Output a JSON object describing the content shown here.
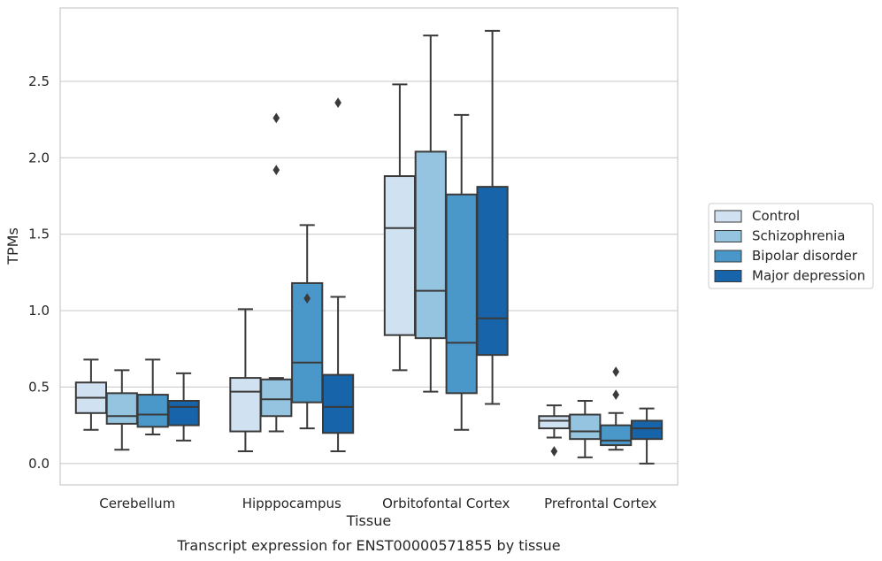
{
  "chart_data": {
    "type": "boxplot",
    "title": "Transcript expression for ENST00000571855 by tissue",
    "xlabel": "Tissue",
    "ylabel": "TPMs",
    "ylim": [
      -0.14,
      2.98
    ],
    "yticks": [
      0.0,
      0.5,
      1.0,
      1.5,
      2.0,
      2.5
    ],
    "ytick_labels": [
      "0.0",
      "0.5",
      "1.0",
      "1.5",
      "2.0",
      "2.5"
    ],
    "grid": "horizontal",
    "legend_position": "right",
    "categories": [
      "Cerebellum",
      "Hipppocampus",
      "Orbitofontal Cortex",
      "Prefrontal Cortex"
    ],
    "series": [
      {
        "name": "Control",
        "color": "#d0e1f2",
        "boxes": [
          {
            "whislo": 0.22,
            "q1": 0.33,
            "med": 0.43,
            "q3": 0.53,
            "whishi": 0.68,
            "fliers": []
          },
          {
            "whislo": 0.08,
            "q1": 0.21,
            "med": 0.47,
            "q3": 0.56,
            "whishi": 1.01,
            "fliers": []
          },
          {
            "whislo": 0.61,
            "q1": 0.84,
            "med": 1.54,
            "q3": 1.88,
            "whishi": 2.48,
            "fliers": []
          },
          {
            "whislo": 0.17,
            "q1": 0.23,
            "med": 0.28,
            "q3": 0.31,
            "whishi": 0.38,
            "fliers": [
              0.08
            ]
          }
        ]
      },
      {
        "name": "Schizophrenia",
        "color": "#94c4df",
        "boxes": [
          {
            "whislo": 0.09,
            "q1": 0.26,
            "med": 0.31,
            "q3": 0.46,
            "whishi": 0.61,
            "fliers": []
          },
          {
            "whislo": 0.21,
            "q1": 0.31,
            "med": 0.42,
            "q3": 0.55,
            "whishi": 0.56,
            "fliers": [
              1.92,
              2.26
            ]
          },
          {
            "whislo": 0.47,
            "q1": 0.82,
            "med": 1.13,
            "q3": 2.04,
            "whishi": 2.8,
            "fliers": []
          },
          {
            "whislo": 0.04,
            "q1": 0.16,
            "med": 0.21,
            "q3": 0.32,
            "whishi": 0.41,
            "fliers": []
          }
        ]
      },
      {
        "name": "Bipolar disorder",
        "color": "#4a98c9",
        "boxes": [
          {
            "whislo": 0.19,
            "q1": 0.24,
            "med": 0.32,
            "q3": 0.45,
            "whishi": 0.68,
            "fliers": []
          },
          {
            "whislo": 0.23,
            "q1": 0.4,
            "med": 0.66,
            "q3": 1.18,
            "whishi": 1.56,
            "fliers": [
              1.08
            ]
          },
          {
            "whislo": 0.22,
            "q1": 0.46,
            "med": 0.79,
            "q3": 1.76,
            "whishi": 2.28,
            "fliers": []
          },
          {
            "whislo": 0.09,
            "q1": 0.12,
            "med": 0.15,
            "q3": 0.25,
            "whishi": 0.33,
            "fliers": [
              0.45,
              0.6
            ]
          }
        ]
      },
      {
        "name": "Major depression",
        "color": "#1764ab",
        "boxes": [
          {
            "whislo": 0.15,
            "q1": 0.25,
            "med": 0.37,
            "q3": 0.41,
            "whishi": 0.59,
            "fliers": []
          },
          {
            "whislo": 0.08,
            "q1": 0.2,
            "med": 0.37,
            "q3": 0.58,
            "whishi": 1.09,
            "fliers": [
              2.36
            ]
          },
          {
            "whislo": 0.39,
            "q1": 0.71,
            "med": 0.95,
            "q3": 1.81,
            "whishi": 2.83,
            "fliers": []
          },
          {
            "whislo": 0.0,
            "q1": 0.16,
            "med": 0.23,
            "q3": 0.28,
            "whishi": 0.36,
            "fliers": []
          }
        ]
      }
    ]
  }
}
